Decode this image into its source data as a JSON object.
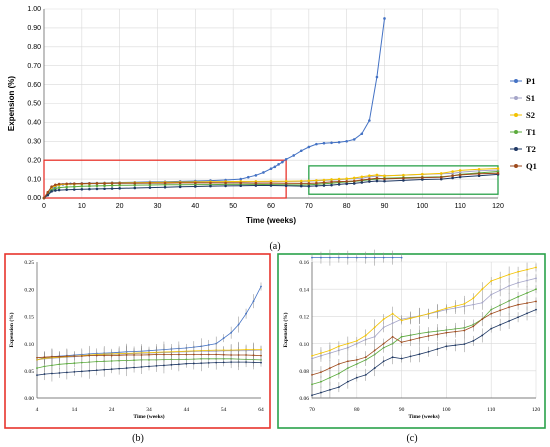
{
  "captions": {
    "a": "(a)",
    "b": "(b)",
    "c": "(c)"
  },
  "chart_data": [
    {
      "panel": "a",
      "type": "line",
      "xlabel": "Time (weeks)",
      "ylabel": "Expension (%)",
      "xlim": [
        0,
        120
      ],
      "ylim": [
        0,
        1.0
      ],
      "xticks": [
        "0",
        "10",
        "20",
        "30",
        "40",
        "50",
        "60",
        "70",
        "80",
        "90",
        "100",
        "110",
        "120"
      ],
      "yticks": [
        "0.00",
        "0.10",
        "0.20",
        "0.30",
        "0.40",
        "0.50",
        "0.60",
        "0.70",
        "0.80",
        "0.90",
        "1.00"
      ],
      "grid": true,
      "legend": "right",
      "highlight_boxes": [
        {
          "color": "#e8342c",
          "x": [
            0,
            64
          ],
          "y": [
            0,
            0.2
          ]
        },
        {
          "color": "#2aa14a",
          "x": [
            70,
            120
          ],
          "y": [
            0.02,
            0.17
          ]
        }
      ],
      "series": [
        {
          "name": "P1",
          "color": "#4472c4",
          "x": [
            0,
            1,
            2,
            3,
            4,
            5,
            6,
            7,
            8,
            10,
            12,
            14,
            16,
            18,
            20,
            24,
            28,
            32,
            36,
            40,
            44,
            48,
            52,
            54,
            56,
            58,
            60,
            61,
            62,
            63,
            64,
            66,
            68,
            70,
            72,
            74,
            76,
            78,
            80,
            82,
            84,
            86,
            88,
            90
          ],
          "y": [
            0,
            0.02,
            0.045,
            0.06,
            0.07,
            0.072,
            0.074,
            0.075,
            0.076,
            0.077,
            0.078,
            0.079,
            0.08,
            0.081,
            0.082,
            0.083,
            0.085,
            0.086,
            0.088,
            0.09,
            0.092,
            0.095,
            0.1,
            0.11,
            0.12,
            0.135,
            0.155,
            0.165,
            0.178,
            0.19,
            0.205,
            0.225,
            0.25,
            0.27,
            0.285,
            0.29,
            0.292,
            0.295,
            0.3,
            0.31,
            0.34,
            0.41,
            0.64,
            0.95
          ]
        },
        {
          "name": "S1",
          "color": "#a5a5c8",
          "x": [
            0,
            1,
            2,
            3,
            4,
            6,
            8,
            10,
            12,
            14,
            16,
            18,
            20,
            24,
            28,
            32,
            36,
            40,
            44,
            48,
            52,
            56,
            60,
            64,
            68,
            70,
            72,
            74,
            76,
            78,
            80,
            82,
            84,
            86,
            88,
            90,
            95,
            100,
            105,
            108,
            110,
            115,
            120
          ],
          "y": [
            0,
            0.03,
            0.055,
            0.065,
            0.07,
            0.072,
            0.073,
            0.074,
            0.075,
            0.076,
            0.077,
            0.078,
            0.079,
            0.08,
            0.081,
            0.082,
            0.083,
            0.084,
            0.085,
            0.086,
            0.086,
            0.087,
            0.087,
            0.088,
            0.088,
            0.089,
            0.091,
            0.093,
            0.095,
            0.097,
            0.1,
            0.103,
            0.105,
            0.112,
            0.115,
            0.118,
            0.121,
            0.125,
            0.128,
            0.13,
            0.136,
            0.144,
            0.148
          ]
        },
        {
          "name": "S2",
          "color": "#f2c200",
          "x": [
            0,
            1,
            2,
            3,
            4,
            6,
            8,
            10,
            12,
            14,
            16,
            18,
            20,
            24,
            28,
            32,
            36,
            40,
            44,
            48,
            52,
            56,
            60,
            64,
            68,
            70,
            72,
            74,
            76,
            78,
            80,
            82,
            84,
            86,
            88,
            90,
            95,
            100,
            105,
            108,
            110,
            115,
            120
          ],
          "y": [
            0,
            0.03,
            0.055,
            0.065,
            0.07,
            0.073,
            0.074,
            0.075,
            0.076,
            0.077,
            0.078,
            0.079,
            0.08,
            0.081,
            0.082,
            0.083,
            0.084,
            0.085,
            0.086,
            0.087,
            0.088,
            0.088,
            0.089,
            0.089,
            0.09,
            0.091,
            0.093,
            0.095,
            0.098,
            0.1,
            0.102,
            0.106,
            0.112,
            0.118,
            0.122,
            0.117,
            0.121,
            0.126,
            0.13,
            0.14,
            0.146,
            0.152,
            0.156
          ]
        },
        {
          "name": "T1",
          "color": "#5bab3c",
          "x": [
            0,
            1,
            2,
            3,
            4,
            6,
            8,
            10,
            12,
            14,
            16,
            18,
            20,
            24,
            28,
            32,
            36,
            40,
            44,
            48,
            52,
            56,
            60,
            64,
            68,
            70,
            72,
            74,
            76,
            78,
            80,
            82,
            84,
            86,
            88,
            90,
            95,
            100,
            105,
            108,
            110,
            115,
            120
          ],
          "y": [
            0,
            0.02,
            0.04,
            0.05,
            0.055,
            0.058,
            0.06,
            0.062,
            0.063,
            0.064,
            0.065,
            0.066,
            0.067,
            0.068,
            0.069,
            0.07,
            0.07,
            0.071,
            0.071,
            0.072,
            0.072,
            0.072,
            0.071,
            0.07,
            0.069,
            0.07,
            0.072,
            0.075,
            0.078,
            0.082,
            0.085,
            0.088,
            0.092,
            0.097,
            0.1,
            0.105,
            0.108,
            0.11,
            0.112,
            0.118,
            0.125,
            0.133,
            0.14
          ]
        },
        {
          "name": "T2",
          "color": "#1f3864",
          "x": [
            0,
            1,
            2,
            3,
            4,
            6,
            8,
            10,
            12,
            14,
            16,
            18,
            20,
            24,
            28,
            32,
            36,
            40,
            44,
            48,
            52,
            56,
            60,
            64,
            68,
            70,
            72,
            74,
            76,
            78,
            80,
            82,
            84,
            86,
            88,
            90,
            95,
            100,
            105,
            108,
            110,
            115,
            120
          ],
          "y": [
            0,
            0.015,
            0.035,
            0.04,
            0.042,
            0.044,
            0.045,
            0.046,
            0.047,
            0.048,
            0.049,
            0.05,
            0.051,
            0.053,
            0.055,
            0.057,
            0.059,
            0.061,
            0.063,
            0.064,
            0.065,
            0.066,
            0.066,
            0.065,
            0.063,
            0.062,
            0.064,
            0.066,
            0.068,
            0.072,
            0.075,
            0.077,
            0.082,
            0.087,
            0.09,
            0.089,
            0.093,
            0.098,
            0.1,
            0.106,
            0.111,
            0.118,
            0.125
          ]
        },
        {
          "name": "Q1",
          "color": "#9e4a1c",
          "x": [
            0,
            1,
            2,
            3,
            4,
            6,
            8,
            10,
            12,
            14,
            16,
            18,
            20,
            24,
            28,
            32,
            36,
            40,
            44,
            48,
            52,
            56,
            60,
            64,
            68,
            70,
            72,
            74,
            76,
            78,
            80,
            82,
            84,
            86,
            88,
            90,
            95,
            100,
            105,
            108,
            110,
            115,
            120
          ],
          "y": [
            0,
            0.03,
            0.06,
            0.07,
            0.074,
            0.075,
            0.076,
            0.076,
            0.077,
            0.077,
            0.077,
            0.078,
            0.078,
            0.078,
            0.079,
            0.079,
            0.08,
            0.08,
            0.08,
            0.08,
            0.08,
            0.079,
            0.079,
            0.078,
            0.077,
            0.077,
            0.079,
            0.082,
            0.085,
            0.087,
            0.088,
            0.09,
            0.095,
            0.1,
            0.105,
            0.101,
            0.105,
            0.108,
            0.11,
            0.118,
            0.122,
            0.128,
            0.131
          ]
        }
      ]
    },
    {
      "panel": "b",
      "type": "line",
      "xlabel": "Time (weeks)",
      "ylabel": "Expension (%)",
      "xlim": [
        4,
        64
      ],
      "ylim": [
        0,
        0.25
      ],
      "xticks": [
        "4",
        "14",
        "24",
        "34",
        "44",
        "54",
        "64"
      ],
      "yticks": [
        "0.00",
        "0.05",
        "0.10",
        "0.15",
        "0.20",
        "0.25"
      ],
      "grid": false,
      "error_bars": true
    },
    {
      "panel": "c",
      "type": "line",
      "xlabel": "Time (weeks)",
      "ylabel": "Expension (%)",
      "xlim": [
        70,
        120
      ],
      "ylim": [
        0.06,
        0.16
      ],
      "xticks": [
        "70",
        "80",
        "90",
        "100",
        "110",
        "120"
      ],
      "yticks": [
        "0.06",
        "0.08",
        "0.10",
        "0.12",
        "0.14",
        "0.16"
      ],
      "grid": true,
      "error_bars": true
    }
  ]
}
